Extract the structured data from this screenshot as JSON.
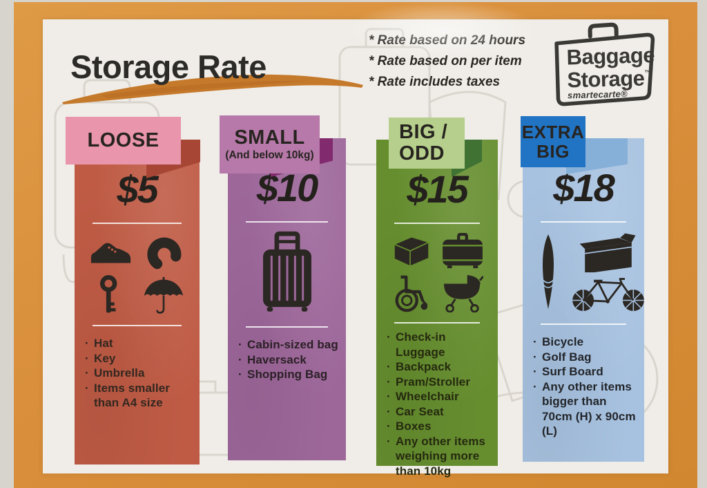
{
  "poster": {
    "title": "Storage Rate",
    "notes": [
      "* Rate based on 24 hours",
      "* Rate based on per item",
      "* Rate includes taxes"
    ],
    "logo": {
      "word1": "Baggage",
      "word2": "Storage",
      "trademark": "™",
      "brand": "smartecarte®"
    },
    "colors": {
      "wall": "#d7d3cd",
      "frame_orange": "#d98f3c",
      "paper": "#f0ede8",
      "title_ink": "#2c2b27",
      "brush_orange": "#c5792b"
    }
  },
  "columns": [
    {
      "label_line1": "LOOSE",
      "price": "$5",
      "items": [
        "Hat",
        "Key",
        "Umbrella",
        "Items smaller than A4 size"
      ],
      "icons": [
        "shoe-icon",
        "neck-pillow-icon",
        "key-icon",
        "umbrella-icon"
      ],
      "colors": {
        "tag": "#e995ab",
        "body": "#bf5b45",
        "fold": "#a74634",
        "text": "#33271f"
      }
    },
    {
      "label_line1": "SMALL",
      "sublabel": "(And below 10kg)",
      "price": "$10",
      "items": [
        "Cabin-sized bag",
        "Haversack",
        "Shopping Bag"
      ],
      "icons": [
        "cabin-suitcase-icon"
      ],
      "colors": {
        "tag": "#b679a9",
        "body": "#9d679a",
        "fold": "#822a6e",
        "text": "#2b2026"
      }
    },
    {
      "label_line1": "BIG /",
      "label_line2": "ODD",
      "price": "$15",
      "items": [
        "Check-in Luggage",
        "Backpack",
        "Pram/Stroller",
        "Wheelchair",
        "Car Seat",
        "Boxes",
        "Any other items weighing more than 10kg"
      ],
      "icons": [
        "box-icon",
        "suitcase-icon",
        "wheelchair-icon",
        "pram-icon"
      ],
      "colors": {
        "tag": "#b6cf8c",
        "body": "#668e2f",
        "fold": "#3f7233",
        "text": "#25290f"
      }
    },
    {
      "label_line1": "EXTRA",
      "label_line2": "BIG",
      "price": "$18",
      "items": [
        "Bicycle",
        "Golf Bag",
        "Surf Board",
        "Any other items bigger than 70cm (H) x 90cm (L)"
      ],
      "icons": [
        "surfboard-icon",
        "golf-bag-icon",
        "bicycle-icon"
      ],
      "colors": {
        "tag": "#2173c4",
        "body": "#a7c2e0",
        "fold": "#86b0d8",
        "text": "#23252a"
      }
    }
  ]
}
